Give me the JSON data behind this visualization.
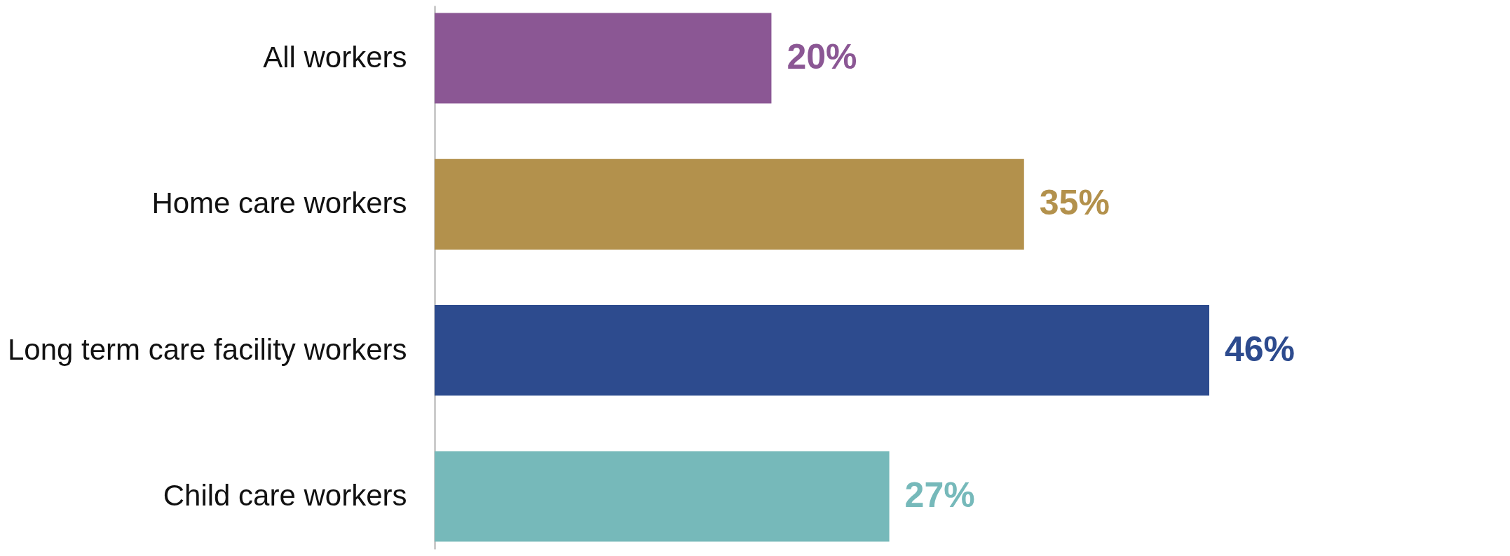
{
  "chart_data": {
    "type": "bar",
    "orientation": "horizontal",
    "categories": [
      "All workers",
      null,
      "Home care workers",
      "Long term care facility workers",
      "Child care workers"
    ],
    "values": [
      20,
      null,
      35,
      46,
      27
    ],
    "colors": [
      "#8b5794",
      null,
      "#b3914c",
      "#2d4b8e",
      "#76b9ba"
    ],
    "value_labels": [
      "20%",
      null,
      "35%",
      "46%",
      "27%"
    ]
  }
}
